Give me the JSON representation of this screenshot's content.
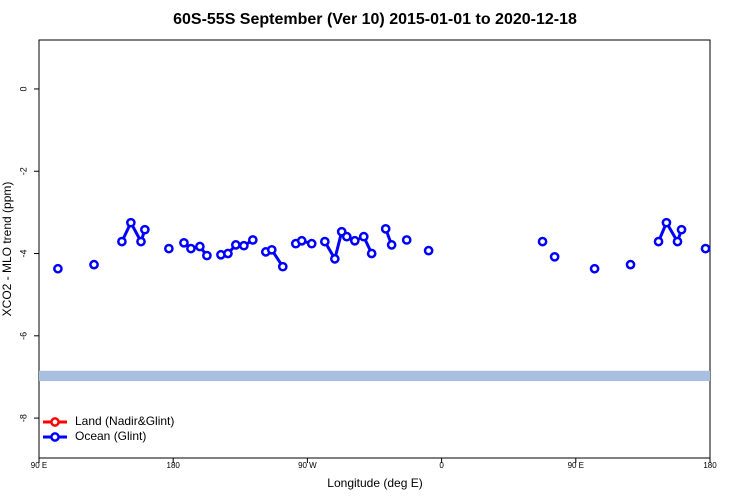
{
  "chart_data": {
    "type": "line",
    "title": "60S-55S September (Ver 10)   2015-01-01 to 2020-12-18",
    "x_label": "Longitude (deg E)",
    "y_label": "XCO2 - MLO trend (ppm)",
    "xlim": [
      90,
      540
    ],
    "xticks": [
      {
        "value": 90,
        "label": "90 E"
      },
      180,
      {
        "value": 270,
        "label": "90 W"
      },
      {
        "value": 360,
        "label": "0"
      },
      {
        "value": 450,
        "label": "90 E"
      },
      {
        "value": 540,
        "label": "180"
      }
    ],
    "ylim": [
      -8.97,
      1.19
    ],
    "yticks": [
      0,
      -2,
      -4,
      -6,
      -8
    ],
    "band_range": [
      -7.1,
      -6.85
    ],
    "band_color": "#a9bfe0",
    "legend": "bottom-left",
    "x": [
      102.7,
      null,
      126.9,
      null,
      145.6,
      151.6,
      158.4,
      161.0,
      null,
      177.1,
      null,
      187.2,
      191.9,
      197.9,
      202.6,
      null,
      212.0,
      216.7,
      222.0,
      227.4,
      233.4,
      null,
      242.1,
      246.1,
      253.5,
      null,
      262.2,
      266.2,
      272.9,
      null,
      281.7,
      288.4,
      293.0,
      296.4,
      301.8,
      307.8,
      313.1,
      null,
      322.5,
      326.5,
      null,
      336.6,
      null,
      351.3,
      null,
      427.7,
      null,
      435.8,
      null,
      462.6,
      null,
      486.7,
      null,
      505.5,
      510.8,
      518.2,
      520.9,
      null,
      537.0
    ],
    "series": [
      {
        "name": "Land (Nadir&Glint)",
        "color": "#ff0000",
        "values": [
          null,
          null,
          null,
          null,
          null,
          null,
          null,
          null,
          null,
          null,
          null,
          null,
          null,
          null,
          null,
          null,
          null,
          null,
          null,
          null,
          null,
          null,
          null,
          null,
          null,
          null,
          null,
          null,
          null,
          null,
          null,
          null,
          null,
          null,
          null,
          null,
          null,
          null,
          null,
          null,
          null,
          null,
          null,
          null,
          null,
          null,
          null,
          null,
          null,
          null,
          null,
          null,
          null,
          null,
          null,
          null,
          null,
          null,
          null
        ]
      },
      {
        "name": "Ocean (Glint)",
        "color": "#0000ff",
        "values": [
          -4.37,
          null,
          -4.27,
          null,
          -3.71,
          -3.25,
          -3.71,
          -3.42,
          null,
          -3.88,
          null,
          -3.74,
          -3.88,
          -3.83,
          -4.05,
          null,
          -4.03,
          -4.0,
          -3.79,
          -3.81,
          -3.67,
          null,
          -3.96,
          -3.91,
          -4.32,
          null,
          -3.76,
          -3.69,
          -3.76,
          null,
          -3.71,
          -4.13,
          -3.47,
          -3.59,
          -3.69,
          -3.59,
          -4.0,
          null,
          -3.4,
          -3.79,
          null,
          -3.67,
          null,
          -3.93,
          null,
          -3.71,
          null,
          -4.08,
          null,
          -4.37,
          null,
          -4.27,
          null,
          -3.71,
          -3.25,
          -3.71,
          -3.42,
          null,
          -3.88
        ]
      }
    ]
  }
}
